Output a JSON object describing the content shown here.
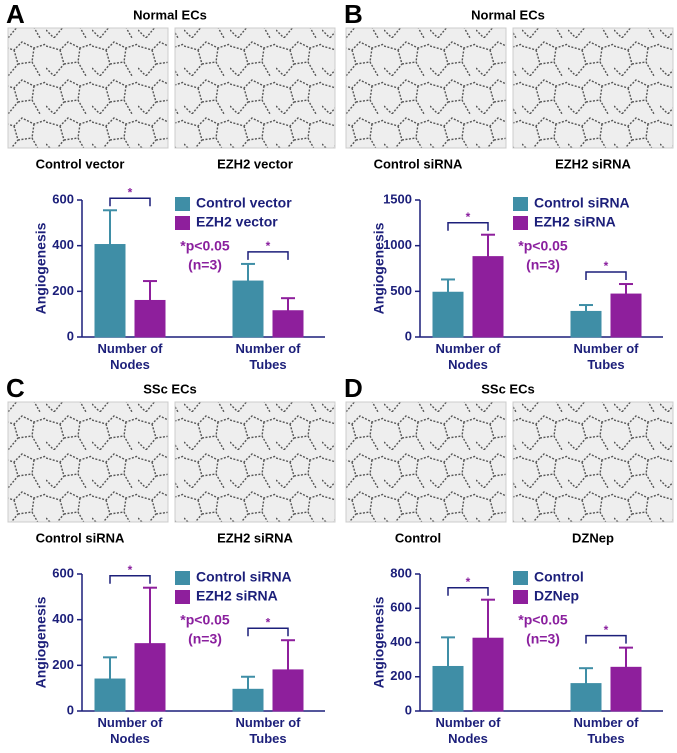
{
  "chart_data": [
    {
      "type": "bar",
      "panel": "A",
      "title": "Normal ECs",
      "image_labels": [
        "Control vector",
        "EZH2 vector"
      ],
      "ylabel": "Angiogenesis",
      "categories": [
        "Number of Nodes",
        "Number of Tubes"
      ],
      "series": [
        {
          "name": "Control vector",
          "color": "#3f8ea6",
          "values": [
            405,
            245
          ],
          "errors": [
            150,
            75
          ]
        },
        {
          "name": "EZH2 vector",
          "color": "#8e1f9c",
          "values": [
            160,
            115
          ],
          "errors": [
            85,
            55
          ]
        }
      ],
      "ylim": [
        0,
        600
      ],
      "yticks": [
        0,
        200,
        400,
        600
      ],
      "annotations": [
        "*p<0.05",
        "(n=3)"
      ],
      "significance": "*"
    },
    {
      "type": "bar",
      "panel": "B",
      "title": "Normal ECs",
      "image_labels": [
        "Control siRNA",
        "EZH2 siRNA"
      ],
      "ylabel": "Angiogenesis",
      "categories": [
        "Number of Nodes",
        "Number of Tubes"
      ],
      "series": [
        {
          "name": "Control siRNA",
          "color": "#3f8ea6",
          "values": [
            490,
            280
          ],
          "errors": [
            140,
            70
          ]
        },
        {
          "name": "EZH2 siRNA",
          "color": "#8e1f9c",
          "values": [
            880,
            470
          ],
          "errors": [
            240,
            110
          ]
        }
      ],
      "ylim": [
        0,
        1500
      ],
      "yticks": [
        0,
        500,
        1000,
        1500
      ],
      "annotations": [
        "*p<0.05",
        "(n=3)"
      ],
      "significance": "*"
    },
    {
      "type": "bar",
      "panel": "C",
      "title": "SSc ECs",
      "image_labels": [
        "Control siRNA",
        "EZH2 siRNA"
      ],
      "ylabel": "Angiogenesis",
      "categories": [
        "Number of Nodes",
        "Number of Tubes"
      ],
      "series": [
        {
          "name": "Control siRNA",
          "color": "#3f8ea6",
          "values": [
            140,
            95
          ],
          "errors": [
            95,
            55
          ]
        },
        {
          "name": "EZH2 siRNA",
          "color": "#8e1f9c",
          "values": [
            295,
            180
          ],
          "errors": [
            245,
            130
          ]
        }
      ],
      "ylim": [
        0,
        600
      ],
      "yticks": [
        0,
        200,
        400,
        600
      ],
      "annotations": [
        "*p<0.05",
        "(n=3)"
      ],
      "significance": "*"
    },
    {
      "type": "bar",
      "panel": "D",
      "title": "SSc ECs",
      "image_labels": [
        "Control",
        "DZNep"
      ],
      "ylabel": "Angiogenesis",
      "categories": [
        "Number of Nodes",
        "Number of Tubes"
      ],
      "series": [
        {
          "name": "Control",
          "color": "#3f8ea6",
          "values": [
            260,
            160
          ],
          "errors": [
            170,
            90
          ]
        },
        {
          "name": "DZNep",
          "color": "#8e1f9c",
          "values": [
            425,
            255
          ],
          "errors": [
            225,
            115
          ]
        }
      ],
      "ylim": [
        0,
        800
      ],
      "yticks": [
        0,
        200,
        400,
        600,
        800
      ],
      "annotations": [
        "*p<0.05",
        "(n=3)"
      ],
      "significance": "*"
    }
  ]
}
